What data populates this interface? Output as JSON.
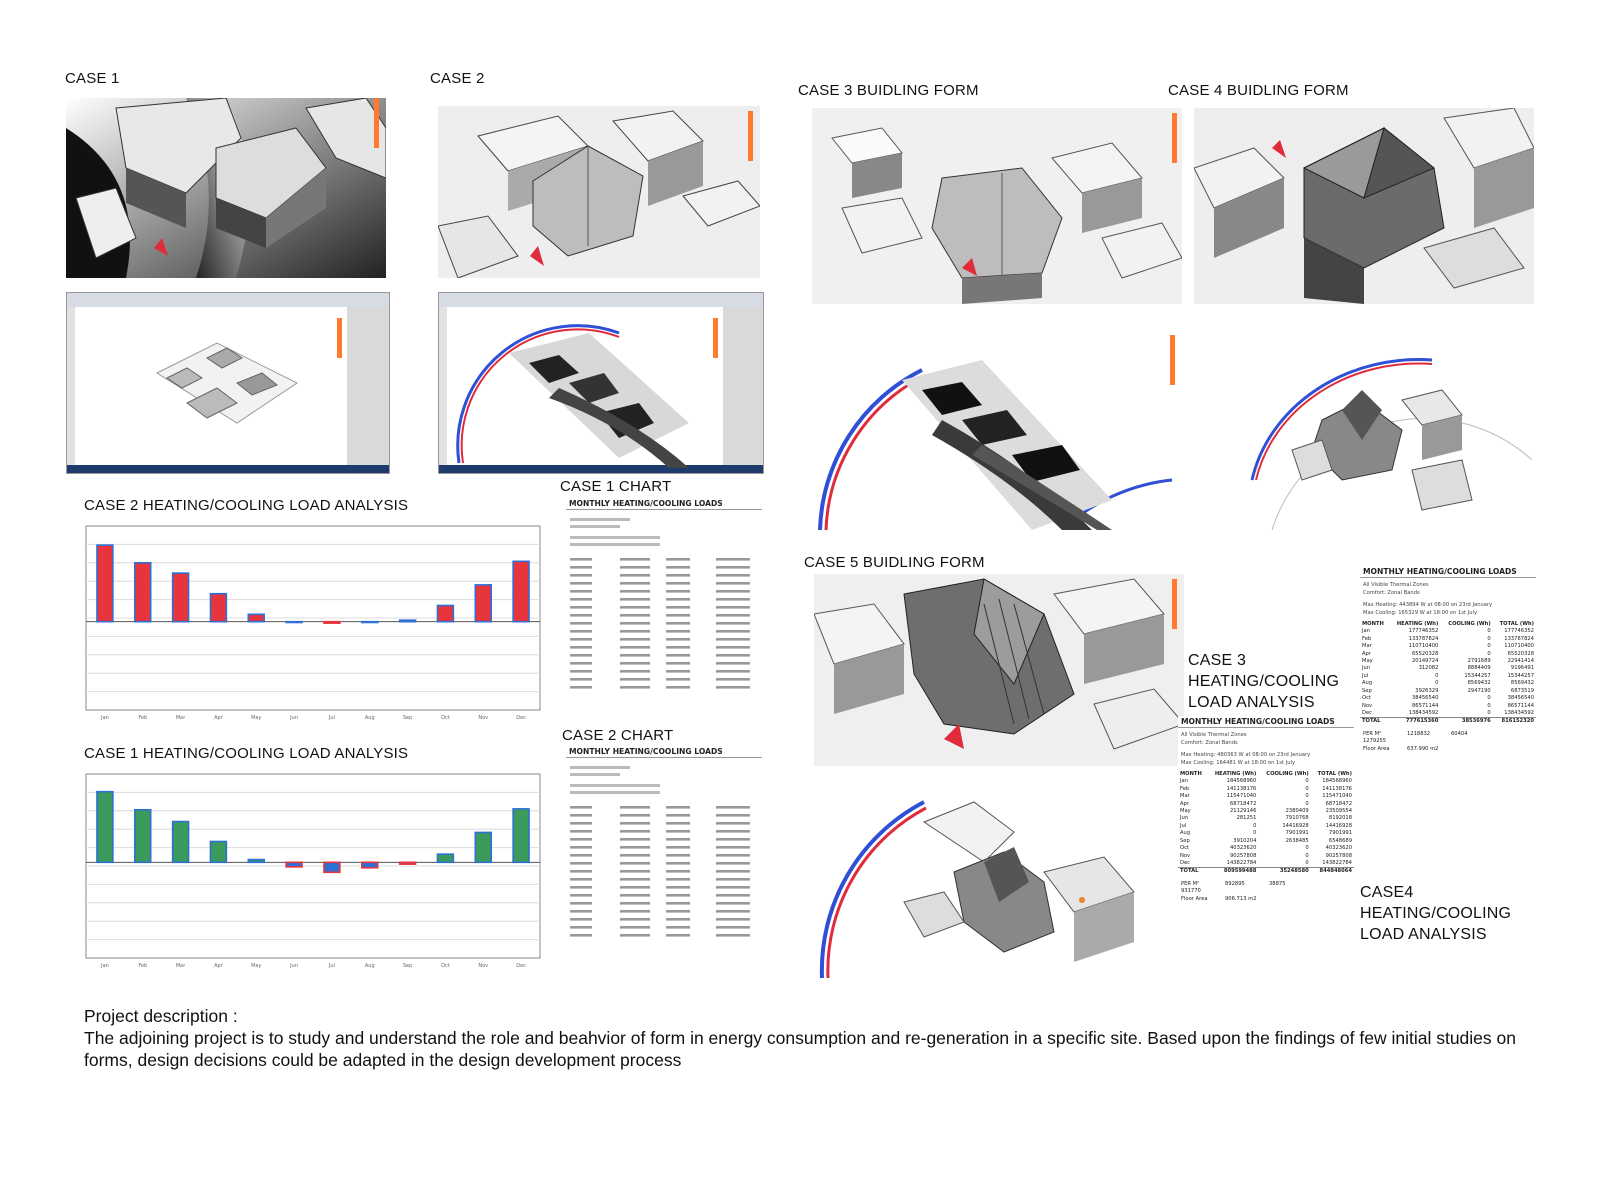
{
  "captions": {
    "case1": "CASE 1",
    "case2": "CASE 2",
    "case3_form": "CASE 3   BUIDLING FORM",
    "case4_form": "CASE 4   BUIDLING FORM",
    "case5_form": "CASE 5 BUIDLING FORM",
    "case2_load": "CASE 2   HEATING/COOLING LOAD ANALYSIS",
    "case1_load": "CASE 1   HEATING/COOLING LOAD ANALYSIS",
    "case1_chart": "CASE 1 CHART",
    "case2_chart": "CASE 2 CHART",
    "case3_load": "CASE 3 HEATING/COOLING LOAD ANALYSIS",
    "case4_load": "CASE4 HEATING/COOLING LOAD ANALYSIS"
  },
  "description": {
    "heading": "Project description :",
    "body": "The adjoining project is to study and understand the role and beahvior of form in energy consumption and re-generation in a specific site. Based upon the findings of few initial studies on forms, design decisions could be adapted in the design development process"
  },
  "tables": {
    "case4": {
      "title": "MONTHLY HEATING/COOLING LOADS",
      "zones": "All Visible Thermal Zones",
      "comfort": "Comfort: Zonal Bands",
      "max_heating": "Max Heating:  443894 W  at 08:00 on 23rd January",
      "max_cooling": "Max Cooling:  165329 W  at 18:00 on 1st July",
      "headers": [
        "MONTH",
        "HEATING (Wh)",
        "COOLING (Wh)",
        "TOTAL (Wh)"
      ],
      "rows": [
        [
          "Jan",
          "177746352",
          "0",
          "177746352"
        ],
        [
          "Feb",
          "133787824",
          "0",
          "133787824"
        ],
        [
          "Mar",
          "110710400",
          "0",
          "110710400"
        ],
        [
          "Apr",
          "65520328",
          "0",
          "65520328"
        ],
        [
          "May",
          "20149724",
          "2791689",
          "22941414"
        ],
        [
          "Jun",
          "312082",
          "8884409",
          "9196491"
        ],
        [
          "Jul",
          "0",
          "15344257",
          "15344257"
        ],
        [
          "Aug",
          "0",
          "8569432",
          "8569432"
        ],
        [
          "Sep",
          "3926329",
          "2947190",
          "6873519"
        ],
        [
          "Oct",
          "38456540",
          "0",
          "38456540"
        ],
        [
          "Nov",
          "86571144",
          "0",
          "86571144"
        ],
        [
          "Dec",
          "138434592",
          "0",
          "138434592"
        ]
      ],
      "total": [
        "TOTAL",
        "777615360",
        "38536976",
        "816152320"
      ],
      "per_m2": [
        "PER M²",
        "1218832",
        "60404",
        "1279255"
      ],
      "floor_area": [
        "Floor Area",
        "637.990 m2"
      ]
    },
    "case3": {
      "title": "MONTHLY HEATING/COOLING LOADS",
      "zones": "All Visible Thermal Zones",
      "comfort": "Comfort: Zonal Bands",
      "max_heating": "Max Heating:  480363 W  at 08:00 on 23rd January",
      "max_cooling": "Max Cooling:  164481 W  at 18:00 on 1st July",
      "headers": [
        "MONTH",
        "HEATING (Wh)",
        "COOLING (Wh)",
        "TOTAL (Wh)"
      ],
      "rows": [
        [
          "Jan",
          "184568960",
          "0",
          "184568960"
        ],
        [
          "Feb",
          "141138176",
          "0",
          "141138176"
        ],
        [
          "Mar",
          "115471040",
          "0",
          "115471040"
        ],
        [
          "Apr",
          "68718472",
          "0",
          "68718472"
        ],
        [
          "May",
          "21129146",
          "2380409",
          "23509554"
        ],
        [
          "Jun",
          "281251",
          "7910768",
          "8192018"
        ],
        [
          "Jul",
          "0",
          "14416928",
          "14416928"
        ],
        [
          "Aug",
          "0",
          "7901991",
          "7901991"
        ],
        [
          "Sep",
          "3910204",
          "2638485",
          "6548689"
        ],
        [
          "Oct",
          "40323620",
          "0",
          "40323620"
        ],
        [
          "Nov",
          "90257808",
          "0",
          "90257808"
        ],
        [
          "Dec",
          "143822784",
          "0",
          "143822784"
        ]
      ],
      "total": [
        "TOTAL",
        "809599488",
        "35248580",
        "844848064"
      ],
      "per_m2": [
        "PER M²",
        "892895",
        "38875",
        "931770"
      ],
      "floor_area": [
        "Floor Area",
        "906.713 m2"
      ]
    }
  },
  "colors": {
    "heating_bar": "#e8343c",
    "cooling_bar": "#2e6fd6",
    "case1_heating_bar": "#3a9b5c",
    "legend_scale": [
      "#ffe34a",
      "#ffb52e",
      "#ff7a2e",
      "#ff3f4a",
      "#e8307a",
      "#b02ab8",
      "#6a33c9",
      "#3a3fd0"
    ]
  },
  "chart_data": [
    {
      "type": "bar",
      "categories": [
        "Jan",
        "Feb",
        "Mar",
        "Apr",
        "May",
        "Jun",
        "Jul",
        "Aug",
        "Sep",
        "Oct",
        "Nov",
        "Dec"
      ],
      "series": [
        {
          "values": [
            260,
            200,
            165,
            95,
            25,
            0,
            -5,
            0,
            5,
            55,
            125,
            205
          ]
        }
      ]
    },
    {
      "type": "bar",
      "categories": [
        "Jan",
        "Feb",
        "Mar",
        "Apr",
        "May",
        "Jun",
        "Jul",
        "Aug",
        "Sep",
        "Oct",
        "Nov",
        "Dec"
      ],
      "series": [
        {
          "values": [
            390,
            290,
            225,
            115,
            15,
            -25,
            -55,
            -30,
            -10,
            45,
            165,
            295
          ]
        }
      ]
    }
  ]
}
